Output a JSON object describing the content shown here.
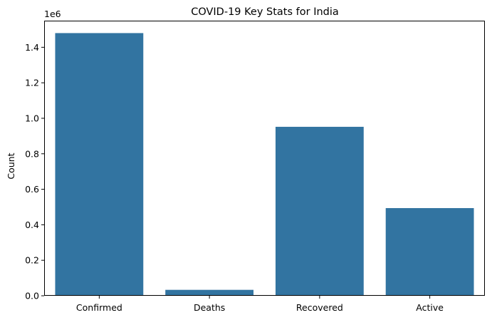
{
  "chart_data": {
    "type": "bar",
    "title": "COVID-19 Key Stats for India",
    "xlabel": "",
    "ylabel": "Count",
    "offset_text": "1e6",
    "categories": [
      "Confirmed",
      "Deaths",
      "Recovered",
      "Active"
    ],
    "values": [
      1480000,
      33400,
      952000,
      494000
    ],
    "ylim": [
      0,
      1550000
    ],
    "yticks": [
      0,
      200000,
      400000,
      600000,
      800000,
      1000000,
      1200000,
      1400000
    ],
    "ytick_labels": [
      "0.0",
      "0.2",
      "0.4",
      "0.6",
      "0.8",
      "1.0",
      "1.2",
      "1.4"
    ],
    "bar_color": "#3274a1",
    "grid": false,
    "legend": "none"
  }
}
